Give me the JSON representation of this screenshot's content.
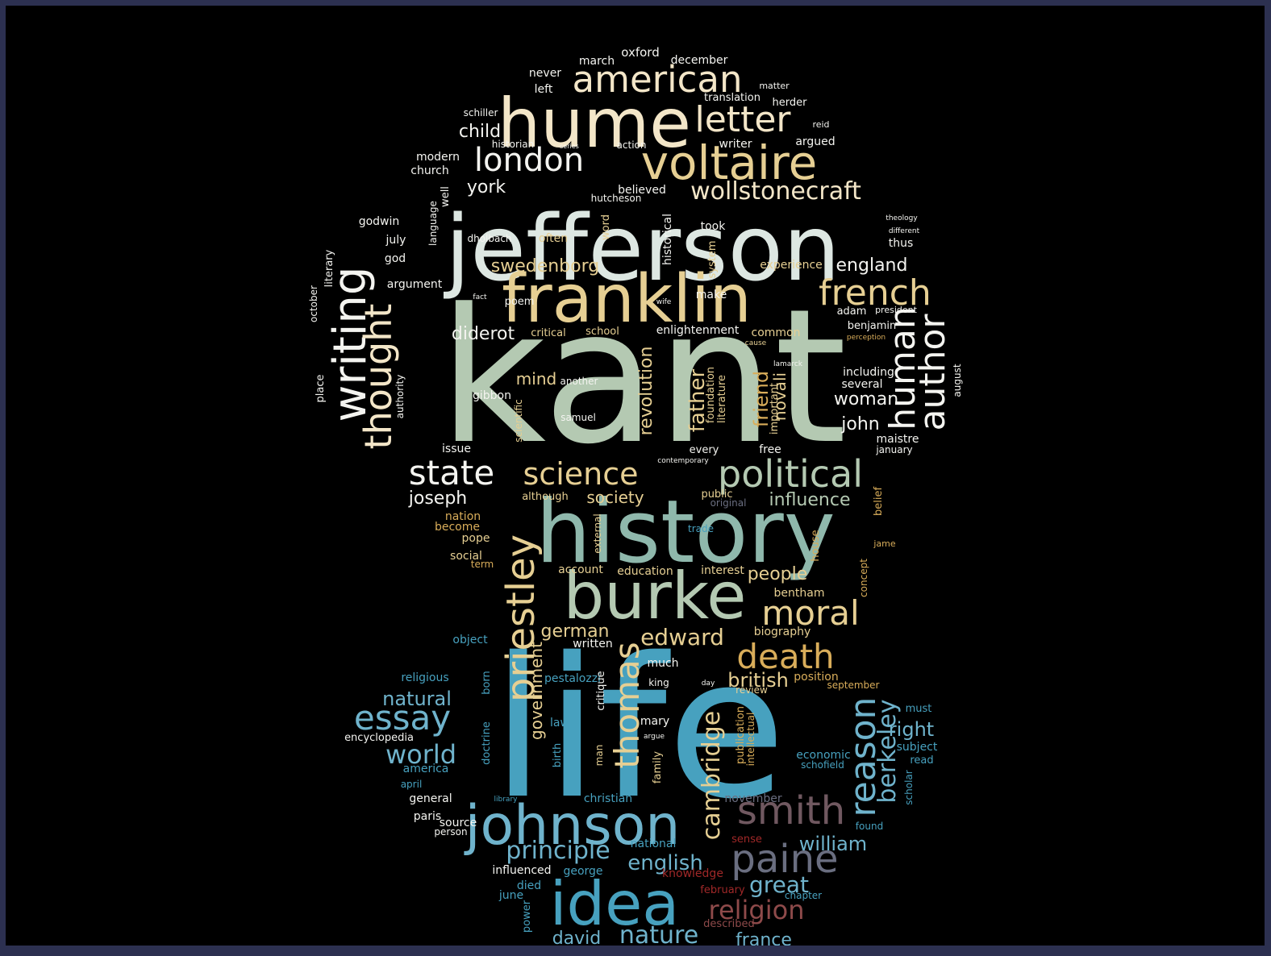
{
  "title": "",
  "palette": {
    "cream": "#f3e6c8",
    "sand": "#e6cf93",
    "gold": "#d9ad5a",
    "sage": "#b4c9b2",
    "teal": "#8fb8ac",
    "pale": "#dde7e2",
    "white": "#f4f4f0",
    "blue": "#47a1bf",
    "lightblue": "#6fb3cc",
    "mauve": "#705860",
    "slate": "#6a6e80",
    "rust": "#8e4a4a",
    "red": "#a02828",
    "frame_border": "#2c3050",
    "background": "#000000"
  },
  "words": [
    {
      "text": "kant",
      "color": "sage"
    },
    {
      "text": "life",
      "color": "blue"
    },
    {
      "text": "jefferson",
      "color": "pale"
    },
    {
      "text": "history",
      "color": "teal"
    },
    {
      "text": "franklin",
      "color": "sand"
    },
    {
      "text": "hume",
      "color": "cream"
    },
    {
      "text": "burke",
      "color": "sage"
    },
    {
      "text": "idea",
      "color": "blue"
    },
    {
      "text": "johnson",
      "color": "lightblue"
    },
    {
      "text": "voltaire",
      "color": "sand"
    },
    {
      "text": "american",
      "color": "cream"
    },
    {
      "text": "letter",
      "color": "cream"
    },
    {
      "text": "london",
      "color": "white"
    },
    {
      "text": "writing",
      "color": "white"
    },
    {
      "text": "thought",
      "color": "cream"
    },
    {
      "text": "political",
      "color": "sage"
    },
    {
      "text": "science",
      "color": "sand"
    },
    {
      "text": "state",
      "color": "white"
    },
    {
      "text": "french",
      "color": "sand"
    },
    {
      "text": "human",
      "color": "white"
    },
    {
      "text": "author",
      "color": "white"
    },
    {
      "text": "wollstonecraft",
      "color": "cream"
    },
    {
      "text": "priestley",
      "color": "sand"
    },
    {
      "text": "moral",
      "color": "sand"
    },
    {
      "text": "death",
      "color": "gold"
    },
    {
      "text": "smith",
      "color": "mauve"
    },
    {
      "text": "paine",
      "color": "slate"
    },
    {
      "text": "essay",
      "color": "lightblue"
    },
    {
      "text": "reason",
      "color": "lightblue"
    },
    {
      "text": "thomas",
      "color": "sand"
    },
    {
      "text": "principle",
      "color": "lightblue"
    },
    {
      "text": "cambridge",
      "color": "sand"
    },
    {
      "text": "religion",
      "color": "rust"
    },
    {
      "text": "world",
      "color": "lightblue"
    },
    {
      "text": "berkeley",
      "color": "lightblue"
    },
    {
      "text": "nature",
      "color": "lightblue"
    },
    {
      "text": "great",
      "color": "lightblue"
    },
    {
      "text": "natural",
      "color": "lightblue"
    },
    {
      "text": "william",
      "color": "lightblue"
    },
    {
      "text": "english",
      "color": "lightblue"
    },
    {
      "text": "edward",
      "color": "sand"
    },
    {
      "text": "german",
      "color": "sand"
    },
    {
      "text": "british",
      "color": "sand"
    },
    {
      "text": "diderot",
      "color": "white"
    },
    {
      "text": "swedenborg",
      "color": "sand"
    },
    {
      "text": "england",
      "color": "white"
    },
    {
      "text": "revolution",
      "color": "sand"
    },
    {
      "text": "father",
      "color": "sand"
    },
    {
      "text": "friend",
      "color": "gold"
    },
    {
      "text": "novali",
      "color": "sand"
    },
    {
      "text": "influence",
      "color": "sage"
    },
    {
      "text": "people",
      "color": "sand"
    },
    {
      "text": "society",
      "color": "sand"
    },
    {
      "text": "joseph",
      "color": "white"
    },
    {
      "text": "child",
      "color": "white"
    },
    {
      "text": "york",
      "color": "white"
    },
    {
      "text": "mind",
      "color": "sand"
    },
    {
      "text": "woman",
      "color": "white"
    },
    {
      "text": "john",
      "color": "white"
    },
    {
      "text": "government",
      "color": "sand"
    },
    {
      "text": "right",
      "color": "lightblue"
    },
    {
      "text": "david",
      "color": "lightblue"
    },
    {
      "text": "france",
      "color": "lightblue"
    },
    {
      "text": "oxford",
      "color": "white"
    },
    {
      "text": "march",
      "color": "white"
    },
    {
      "text": "december",
      "color": "white"
    },
    {
      "text": "never",
      "color": "white"
    },
    {
      "text": "matter",
      "color": "white"
    },
    {
      "text": "translation",
      "color": "white"
    },
    {
      "text": "left",
      "color": "white"
    },
    {
      "text": "herder",
      "color": "white"
    },
    {
      "text": "schiller",
      "color": "white"
    },
    {
      "text": "reid",
      "color": "white"
    },
    {
      "text": "historian",
      "color": "white"
    },
    {
      "text": "series",
      "color": "white"
    },
    {
      "text": "action",
      "color": "white"
    },
    {
      "text": "writer",
      "color": "white"
    },
    {
      "text": "argued",
      "color": "white"
    },
    {
      "text": "modern",
      "color": "white"
    },
    {
      "text": "church",
      "color": "white"
    },
    {
      "text": "well",
      "color": "white"
    },
    {
      "text": "language",
      "color": "white"
    },
    {
      "text": "believed",
      "color": "white"
    },
    {
      "text": "hutcheson",
      "color": "white"
    },
    {
      "text": "godwin",
      "color": "white"
    },
    {
      "text": "july",
      "color": "white"
    },
    {
      "text": "god",
      "color": "white"
    },
    {
      "text": "dholbach",
      "color": "white"
    },
    {
      "text": "often",
      "color": "sand"
    },
    {
      "text": "word",
      "color": "sand"
    },
    {
      "text": "historical",
      "color": "white"
    },
    {
      "text": "took",
      "color": "white"
    },
    {
      "text": "system",
      "color": "sand"
    },
    {
      "text": "theology",
      "color": "white"
    },
    {
      "text": "different",
      "color": "white"
    },
    {
      "text": "thus",
      "color": "white"
    },
    {
      "text": "experience",
      "color": "sand"
    },
    {
      "text": "literary",
      "color": "white"
    },
    {
      "text": "october",
      "color": "white"
    },
    {
      "text": "argument",
      "color": "white"
    },
    {
      "text": "fact",
      "color": "white"
    },
    {
      "text": "poem",
      "color": "white"
    },
    {
      "text": "make",
      "color": "white"
    },
    {
      "text": "wife",
      "color": "white"
    },
    {
      "text": "adam",
      "color": "white"
    },
    {
      "text": "president",
      "color": "white"
    },
    {
      "text": "critical",
      "color": "sand"
    },
    {
      "text": "school",
      "color": "sand"
    },
    {
      "text": "enlightenment",
      "color": "white"
    },
    {
      "text": "common",
      "color": "sand"
    },
    {
      "text": "benjamin",
      "color": "white"
    },
    {
      "text": "perception",
      "color": "gold"
    },
    {
      "text": "cause",
      "color": "sand"
    },
    {
      "text": "lamarck",
      "color": "white"
    },
    {
      "text": "including",
      "color": "white"
    },
    {
      "text": "several",
      "color": "white"
    },
    {
      "text": "august",
      "color": "white"
    },
    {
      "text": "place",
      "color": "white"
    },
    {
      "text": "authority",
      "color": "white"
    },
    {
      "text": "another",
      "color": "white"
    },
    {
      "text": "gibbon",
      "color": "white"
    },
    {
      "text": "scientific",
      "color": "sand"
    },
    {
      "text": "samuel",
      "color": "white"
    },
    {
      "text": "foundation",
      "color": "sand"
    },
    {
      "text": "literature",
      "color": "sand"
    },
    {
      "text": "important",
      "color": "sand"
    },
    {
      "text": "issue",
      "color": "white"
    },
    {
      "text": "every",
      "color": "white"
    },
    {
      "text": "free",
      "color": "white"
    },
    {
      "text": "contemporary",
      "color": "white"
    },
    {
      "text": "maistre",
      "color": "white"
    },
    {
      "text": "january",
      "color": "white"
    },
    {
      "text": "although",
      "color": "sand"
    },
    {
      "text": "public",
      "color": "sand"
    },
    {
      "text": "original",
      "color": "slate"
    },
    {
      "text": "belief",
      "color": "gold"
    },
    {
      "text": "nation",
      "color": "gold"
    },
    {
      "text": "become",
      "color": "gold"
    },
    {
      "text": "external",
      "color": "sand"
    },
    {
      "text": "trade",
      "color": "blue"
    },
    {
      "text": "jame",
      "color": "gold"
    },
    {
      "text": "pope",
      "color": "sand"
    },
    {
      "text": "house",
      "color": "gold"
    },
    {
      "text": "social",
      "color": "sand"
    },
    {
      "text": "term",
      "color": "gold"
    },
    {
      "text": "account",
      "color": "sand"
    },
    {
      "text": "education",
      "color": "sand"
    },
    {
      "text": "interest",
      "color": "sand"
    },
    {
      "text": "concept",
      "color": "gold"
    },
    {
      "text": "bentham",
      "color": "sand"
    },
    {
      "text": "biography",
      "color": "sand"
    },
    {
      "text": "object",
      "color": "blue"
    },
    {
      "text": "written",
      "color": "white"
    },
    {
      "text": "much",
      "color": "white"
    },
    {
      "text": "position",
      "color": "gold"
    },
    {
      "text": "religious",
      "color": "blue"
    },
    {
      "text": "born",
      "color": "blue"
    },
    {
      "text": "pestalozzi",
      "color": "blue"
    },
    {
      "text": "king",
      "color": "white"
    },
    {
      "text": "day",
      "color": "white"
    },
    {
      "text": "review",
      "color": "sand"
    },
    {
      "text": "september",
      "color": "gold"
    },
    {
      "text": "critique",
      "color": "white"
    },
    {
      "text": "must",
      "color": "blue"
    },
    {
      "text": "law",
      "color": "blue"
    },
    {
      "text": "mary",
      "color": "white"
    },
    {
      "text": "publication",
      "color": "gold"
    },
    {
      "text": "intellectual",
      "color": "gold"
    },
    {
      "text": "encyclopedia",
      "color": "white"
    },
    {
      "text": "doctrine",
      "color": "blue"
    },
    {
      "text": "argue",
      "color": "white"
    },
    {
      "text": "subject",
      "color": "blue"
    },
    {
      "text": "america",
      "color": "blue"
    },
    {
      "text": "birth",
      "color": "blue"
    },
    {
      "text": "man",
      "color": "sand"
    },
    {
      "text": "family",
      "color": "sand"
    },
    {
      "text": "economic",
      "color": "blue"
    },
    {
      "text": "read",
      "color": "blue"
    },
    {
      "text": "schofield",
      "color": "blue"
    },
    {
      "text": "april",
      "color": "blue"
    },
    {
      "text": "scholar",
      "color": "blue"
    },
    {
      "text": "general",
      "color": "white"
    },
    {
      "text": "library",
      "color": "blue"
    },
    {
      "text": "christian",
      "color": "blue"
    },
    {
      "text": "november",
      "color": "slate"
    },
    {
      "text": "paris",
      "color": "white"
    },
    {
      "text": "source",
      "color": "white"
    },
    {
      "text": "person",
      "color": "white"
    },
    {
      "text": "found",
      "color": "blue"
    },
    {
      "text": "sense",
      "color": "red"
    },
    {
      "text": "national",
      "color": "blue"
    },
    {
      "text": "influenced",
      "color": "white"
    },
    {
      "text": "george",
      "color": "blue"
    },
    {
      "text": "knowledge",
      "color": "red"
    },
    {
      "text": "died",
      "color": "blue"
    },
    {
      "text": "february",
      "color": "red"
    },
    {
      "text": "chapter",
      "color": "blue"
    },
    {
      "text": "june",
      "color": "blue"
    },
    {
      "text": "power",
      "color": "blue"
    },
    {
      "text": "described",
      "color": "rust"
    }
  ]
}
